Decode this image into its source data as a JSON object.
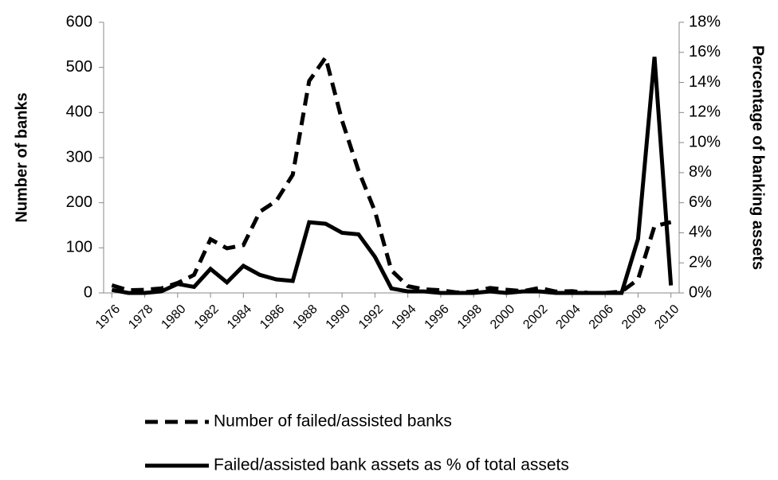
{
  "chart_data": {
    "type": "line",
    "x": [
      1976,
      1977,
      1978,
      1979,
      1980,
      1981,
      1982,
      1983,
      1984,
      1985,
      1986,
      1987,
      1988,
      1989,
      1990,
      1991,
      1992,
      1993,
      1994,
      1995,
      1996,
      1997,
      1998,
      1999,
      2000,
      2001,
      2002,
      2003,
      2004,
      2005,
      2006,
      2007,
      2008,
      2009,
      2010
    ],
    "xlim": [
      1975.5,
      2010.5
    ],
    "xticks": [
      1976,
      1978,
      1980,
      1982,
      1984,
      1986,
      1988,
      1990,
      1992,
      1994,
      1996,
      1998,
      2000,
      2002,
      2004,
      2006,
      2008,
      2010
    ],
    "ylabel": "Number of banks",
    "ylim": [
      0,
      600
    ],
    "yticks": [
      0,
      100,
      200,
      300,
      400,
      500,
      600
    ],
    "y2label": "Percentage of banking  assets",
    "y2lim": [
      0,
      18
    ],
    "y2ticks": [
      {
        "value": 0,
        "label": "0%"
      },
      {
        "value": 2,
        "label": "2%"
      },
      {
        "value": 4,
        "label": "4%"
      },
      {
        "value": 6,
        "label": "6%"
      },
      {
        "value": 8,
        "label": "8%"
      },
      {
        "value": 10,
        "label": "10%"
      },
      {
        "value": 12,
        "label": "12%"
      },
      {
        "value": 14,
        "label": "14%"
      },
      {
        "value": 16,
        "label": "16%"
      },
      {
        "value": 18,
        "label": "18%"
      }
    ],
    "series": [
      {
        "name": "Number of failed/assisted banks",
        "color": "#000000",
        "dashed": true,
        "values": [
          17,
          6,
          7,
          10,
          22,
          40,
          119,
          99,
          106,
          180,
          204,
          262,
          470,
          522,
          382,
          271,
          181,
          50,
          15,
          8,
          6,
          1,
          3,
          11,
          7,
          4,
          11,
          3,
          4,
          0,
          0,
          3,
          30,
          148,
          157
        ]
      },
      {
        "name": "Failed/assisted bank assets as % of total assets",
        "color": "#000000",
        "dashed": false,
        "axis": "y2",
        "values": [
          0.2,
          0,
          0,
          0.1,
          0.6,
          0.4,
          1.6,
          0.7,
          1.8,
          1.2,
          0.9,
          0.8,
          4.7,
          4.6,
          4.0,
          3.9,
          2.4,
          0.3,
          0.1,
          0.1,
          0,
          0,
          0,
          0.1,
          0,
          0.1,
          0.1,
          0,
          0,
          0,
          0,
          0,
          3.6,
          15.7,
          0.5
        ]
      }
    ]
  }
}
